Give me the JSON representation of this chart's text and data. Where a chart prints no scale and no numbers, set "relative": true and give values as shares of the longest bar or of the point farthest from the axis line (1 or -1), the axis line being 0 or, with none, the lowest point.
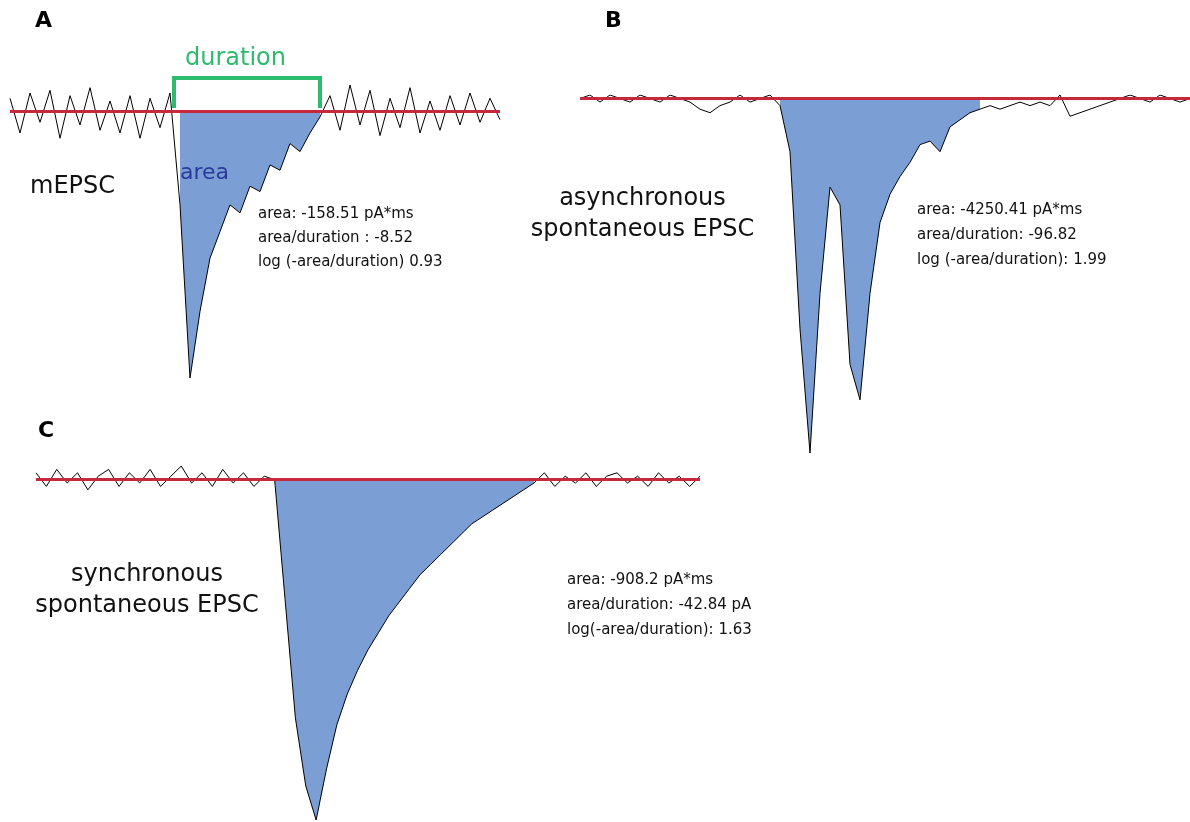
{
  "chart_data": [
    {
      "type": "line",
      "title": "A",
      "relative": true,
      "tick_labels": false,
      "marker": "none",
      "categories": [
        null,
        null,
        null,
        null,
        null,
        null,
        null,
        null,
        null,
        null,
        null,
        null,
        null,
        null,
        null,
        null,
        null,
        null,
        null,
        null,
        null,
        null,
        null,
        null,
        null,
        null,
        null,
        null,
        null,
        null,
        null,
        null,
        null,
        null,
        null,
        null,
        null,
        null,
        null,
        null,
        null,
        null,
        null,
        null,
        null,
        null,
        null,
        null,
        null,
        null
      ],
      "series": [
        {
          "type": "area",
          "color": "#7b9fd4",
          "values": [
            null,
            null,
            null,
            null,
            null,
            null,
            null,
            null,
            null,
            null,
            null,
            null,
            null,
            null,
            null,
            null,
            null,
            -0.35,
            -1,
            -0.75,
            -0.55,
            -0.45,
            -0.35,
            -0.38,
            -0.28,
            -0.3,
            -0.2,
            -0.22,
            -0.12,
            -0.15,
            -0.08,
            -0.02,
            null,
            null,
            null,
            null,
            null,
            null,
            null,
            null,
            null,
            null,
            null,
            null,
            null,
            null,
            null,
            null,
            null,
            null
          ]
        },
        {
          "type": "line",
          "color": "#000000",
          "values": [
            0.05,
            -0.08,
            0.07,
            -0.04,
            0.08,
            -0.1,
            0.06,
            -0.05,
            0.09,
            -0.07,
            0.04,
            -0.08,
            0.06,
            -0.1,
            0.05,
            -0.06,
            0.07,
            -0.35,
            -1,
            -0.75,
            -0.55,
            -0.45,
            -0.35,
            -0.38,
            -0.28,
            -0.3,
            -0.2,
            -0.22,
            -0.12,
            -0.15,
            -0.08,
            -0.02,
            0.06,
            -0.07,
            0.1,
            -0.05,
            0.08,
            -0.09,
            0.05,
            -0.06,
            0.09,
            -0.08,
            0.04,
            -0.07,
            0.06,
            -0.05,
            0.07,
            -0.04,
            0.05,
            -0.03
          ]
        }
      ],
      "ref_lines": [
        {
          "axis": "y",
          "value": 0,
          "color": "#c8283c"
        }
      ],
      "annotations": [
        "duration",
        "area",
        "mEPSC",
        "area: -158.51 pA*ms",
        "area/duration : -8.52",
        "log (-area/duration) 0.93"
      ]
    },
    {
      "type": "line",
      "title": "B",
      "relative": true,
      "tick_labels": false,
      "marker": "none",
      "categories": [
        null,
        null,
        null,
        null,
        null,
        null,
        null,
        null,
        null,
        null,
        null,
        null,
        null,
        null,
        null,
        null,
        null,
        null,
        null,
        null,
        null,
        null,
        null,
        null,
        null,
        null,
        null,
        null,
        null,
        null,
        null,
        null,
        null,
        null,
        null,
        null,
        null,
        null,
        null,
        null,
        null,
        null,
        null,
        null,
        null,
        null,
        null,
        null,
        null,
        null,
        null,
        null,
        null,
        null,
        null,
        null,
        null,
        null,
        null,
        null,
        null,
        null
      ],
      "series": [
        {
          "type": "area",
          "color": "#7b9fd4",
          "values": [
            null,
            null,
            null,
            null,
            null,
            null,
            null,
            null,
            null,
            null,
            null,
            null,
            null,
            null,
            null,
            null,
            null,
            null,
            null,
            null,
            -0.02,
            -0.15,
            -0.65,
            -1,
            -0.55,
            -0.25,
            -0.3,
            -0.75,
            -0.85,
            -0.55,
            -0.35,
            -0.27,
            -0.22,
            -0.18,
            -0.13,
            -0.12,
            -0.15,
            -0.08,
            -0.06,
            -0.04,
            -0.03,
            null,
            null,
            null,
            null,
            null,
            null,
            null,
            null,
            null,
            null,
            null,
            null,
            null,
            null,
            null,
            null,
            null,
            null,
            null,
            null,
            null
          ]
        },
        {
          "type": "line",
          "color": "#000000",
          "values": [
            0,
            0.01,
            -0.01,
            0.01,
            0,
            -0.01,
            0.01,
            0,
            -0.01,
            0.01,
            0,
            -0.01,
            -0.03,
            -0.04,
            -0.02,
            -0.01,
            0.01,
            -0.01,
            0,
            0.01,
            -0.02,
            -0.15,
            -0.65,
            -1,
            -0.55,
            -0.25,
            -0.3,
            -0.75,
            -0.85,
            -0.55,
            -0.35,
            -0.27,
            -0.22,
            -0.18,
            -0.13,
            -0.12,
            -0.15,
            -0.08,
            -0.06,
            -0.04,
            -0.03,
            -0.02,
            -0.03,
            -0.02,
            -0.01,
            -0.02,
            -0.01,
            -0.02,
            0.01,
            -0.05,
            -0.04,
            -0.03,
            -0.02,
            -0.01,
            0,
            0.01,
            0,
            -0.01,
            0.01,
            0,
            -0.01,
            0
          ]
        }
      ],
      "ref_lines": [
        {
          "axis": "y",
          "value": 0,
          "color": "#c8283c"
        }
      ],
      "annotations": [
        "asynchronous spontaneous EPSC",
        "area: -4250.41 pA*ms",
        "area/duration: -96.82",
        "log (-area/duration): 1.99"
      ]
    },
    {
      "type": "line",
      "title": "C",
      "relative": true,
      "tick_labels": false,
      "marker": "none",
      "categories": [
        null,
        null,
        null,
        null,
        null,
        null,
        null,
        null,
        null,
        null,
        null,
        null,
        null,
        null,
        null,
        null,
        null,
        null,
        null,
        null,
        null,
        null,
        null,
        null,
        null,
        null,
        null,
        null,
        null,
        null,
        null,
        null,
        null,
        null,
        null,
        null,
        null,
        null,
        null,
        null,
        null,
        null,
        null,
        null,
        null,
        null,
        null,
        null,
        null,
        null,
        null,
        null,
        null,
        null,
        null,
        null,
        null,
        null,
        null,
        null,
        null,
        null,
        null,
        null,
        null
      ],
      "series": [
        {
          "type": "area",
          "color": "#7b9fd4",
          "values": [
            null,
            null,
            null,
            null,
            null,
            null,
            null,
            null,
            null,
            null,
            null,
            null,
            null,
            null,
            null,
            null,
            null,
            null,
            null,
            null,
            null,
            null,
            null,
            0,
            -0.35,
            -0.7,
            -0.9,
            -1,
            -0.85,
            -0.72,
            -0.63,
            -0.56,
            -0.5,
            -0.45,
            -0.4,
            -0.36,
            -0.32,
            -0.28,
            -0.25,
            -0.22,
            -0.19,
            -0.16,
            -0.13,
            -0.11,
            -0.09,
            -0.07,
            -0.05,
            -0.03,
            -0.01,
            null,
            null,
            null,
            null,
            null,
            null,
            null,
            null,
            null,
            null,
            null,
            null,
            null,
            null,
            null,
            null
          ]
        },
        {
          "type": "line",
          "color": "#000000",
          "values": [
            0.02,
            -0.02,
            0.03,
            -0.01,
            0.02,
            -0.03,
            0.01,
            0.03,
            -0.02,
            0.02,
            -0.01,
            0.03,
            -0.02,
            0.01,
            0.04,
            -0.01,
            0.02,
            -0.02,
            0.03,
            -0.01,
            0.02,
            -0.02,
            0.01,
            0,
            -0.35,
            -0.7,
            -0.9,
            -1,
            -0.85,
            -0.72,
            -0.63,
            -0.56,
            -0.5,
            -0.45,
            -0.4,
            -0.36,
            -0.32,
            -0.28,
            -0.25,
            -0.22,
            -0.19,
            -0.16,
            -0.13,
            -0.11,
            -0.09,
            -0.07,
            -0.05,
            -0.03,
            -0.01,
            0.02,
            -0.02,
            0.01,
            -0.01,
            0.02,
            -0.02,
            0.01,
            0.02,
            -0.01,
            0.01,
            -0.02,
            0.02,
            -0.01,
            0.01,
            -0.02,
            0.01
          ]
        }
      ],
      "ref_lines": [
        {
          "axis": "y",
          "value": 0,
          "color": "#c8283c"
        }
      ],
      "annotations": [
        "synchronous spontaneous EPSC",
        "area: -908.2 pA*ms",
        "area/duration: -42.84 pA",
        "log(-area/duration): 1.63"
      ]
    }
  ]
}
